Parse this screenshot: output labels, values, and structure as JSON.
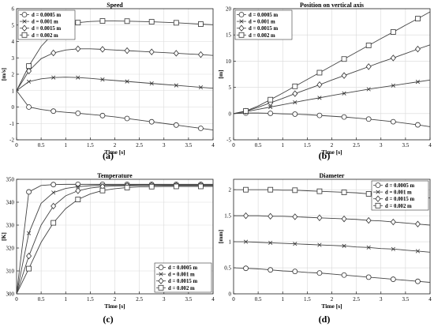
{
  "figure": {
    "captions": [
      "(a)",
      "(b)",
      "(c)",
      "(d)"
    ]
  },
  "chart_data": [
    {
      "id": "a",
      "type": "line",
      "title": "Speed",
      "xlabel": "Time [s]",
      "ylabel": "[m/s]",
      "xlim": [
        0,
        4
      ],
      "ylim": [
        -2,
        6
      ],
      "xticks": [
        0,
        0.5,
        1,
        1.5,
        2,
        2.5,
        3,
        3.5,
        4
      ],
      "yticks": [
        -2,
        -1,
        0,
        1,
        2,
        3,
        4,
        5,
        6
      ],
      "xtick_labels": [
        "0",
        "0.5",
        "1",
        "1.5",
        "2",
        "2.5",
        "3",
        "3.5",
        "4"
      ],
      "ytick_labels": [
        "-2",
        "-1",
        "0",
        "1",
        "2",
        "3",
        "4",
        "5",
        "6"
      ],
      "grid": true,
      "legend_position": "top-left",
      "x": [
        0,
        0.25,
        0.5,
        0.75,
        1,
        1.25,
        1.5,
        1.75,
        2,
        2.25,
        2.5,
        2.75,
        3,
        3.25,
        3.5,
        3.75,
        4
      ],
      "series": [
        {
          "name": "d = 0.0005 m",
          "marker": "circle",
          "values": [
            1,
            0,
            -0.15,
            -0.25,
            -0.32,
            -0.38,
            -0.45,
            -0.52,
            -0.6,
            -0.7,
            -0.8,
            -0.9,
            -1.0,
            -1.1,
            -1.2,
            -1.3,
            -1.4
          ]
        },
        {
          "name": "d = 0.001 m",
          "marker": "x",
          "values": [
            1,
            1.55,
            1.72,
            1.8,
            1.82,
            1.8,
            1.75,
            1.68,
            1.62,
            1.56,
            1.5,
            1.44,
            1.38,
            1.32,
            1.26,
            1.2,
            1.15
          ]
        },
        {
          "name": "d = 0.0015 m",
          "marker": "diamond",
          "values": [
            1,
            2.2,
            2.95,
            3.3,
            3.48,
            3.55,
            3.55,
            3.52,
            3.48,
            3.44,
            3.4,
            3.36,
            3.32,
            3.28,
            3.24,
            3.2,
            3.15
          ]
        },
        {
          "name": "d = 0.002 m",
          "marker": "square",
          "values": [
            1,
            2.5,
            3.7,
            4.5,
            4.95,
            5.15,
            5.22,
            5.25,
            5.25,
            5.24,
            5.22,
            5.2,
            5.17,
            5.14,
            5.1,
            5.06,
            5.02
          ]
        }
      ]
    },
    {
      "id": "b",
      "type": "line",
      "title": "Position on vertical axis",
      "xlabel": "Time [s]",
      "ylabel": "[m]",
      "xlim": [
        0,
        4
      ],
      "ylim": [
        -5,
        20
      ],
      "xticks": [
        0,
        0.5,
        1,
        1.5,
        2,
        2.5,
        3,
        3.5,
        4
      ],
      "yticks": [
        -5,
        0,
        5,
        10,
        15,
        20
      ],
      "xtick_labels": [
        "0",
        "0.5",
        "1",
        "1.5",
        "2",
        "2.5",
        "3",
        "3.5",
        "4"
      ],
      "ytick_labels": [
        "-5",
        "0",
        "5",
        "10",
        "15",
        "20"
      ],
      "grid": true,
      "legend_position": "top-left",
      "x": [
        0,
        0.25,
        0.5,
        0.75,
        1,
        1.25,
        1.5,
        1.75,
        2,
        2.25,
        2.5,
        2.75,
        3,
        3.25,
        3.5,
        3.75,
        4
      ],
      "series": [
        {
          "name": "d = 0.0005 m",
          "marker": "circle",
          "values": [
            0,
            0.1,
            0.1,
            0.05,
            -0.05,
            -0.1,
            -0.2,
            -0.35,
            -0.5,
            -0.65,
            -0.85,
            -1.05,
            -1.3,
            -1.55,
            -1.85,
            -2.15,
            -2.5
          ]
        },
        {
          "name": "d = 0.001 m",
          "marker": "x",
          "values": [
            0,
            0.35,
            0.8,
            1.25,
            1.7,
            2.15,
            2.6,
            3.0,
            3.45,
            3.85,
            4.25,
            4.65,
            5.0,
            5.35,
            5.7,
            6.05,
            6.4
          ]
        },
        {
          "name": "d = 0.0015 m",
          "marker": "diamond",
          "values": [
            0,
            0.45,
            1.2,
            2.05,
            2.9,
            3.8,
            4.65,
            5.5,
            6.4,
            7.25,
            8.1,
            8.95,
            9.8,
            10.6,
            11.45,
            12.3,
            13.1
          ]
        },
        {
          "name": "d = 0.002 m",
          "marker": "square",
          "values": [
            0,
            0.5,
            1.45,
            2.65,
            3.9,
            5.2,
            6.5,
            7.8,
            9.1,
            10.4,
            11.7,
            13.0,
            14.3,
            15.55,
            16.85,
            18.1,
            19.4
          ]
        }
      ]
    },
    {
      "id": "c",
      "type": "line",
      "title": "Temperature",
      "xlabel": "Time [s]",
      "ylabel": "[K]",
      "xlim": [
        0,
        4
      ],
      "ylim": [
        300,
        350
      ],
      "xticks": [
        0,
        0.5,
        1,
        1.5,
        2,
        2.5,
        3,
        3.5,
        4
      ],
      "yticks": [
        300,
        310,
        320,
        330,
        340,
        350
      ],
      "xtick_labels": [
        "0",
        "0.5",
        "1",
        "1.5",
        "2",
        "2.5",
        "3",
        "3.5",
        "4"
      ],
      "ytick_labels": [
        "300",
        "310",
        "320",
        "330",
        "340",
        "350"
      ],
      "grid": true,
      "legend_position": "bottom-right",
      "x": [
        0,
        0.25,
        0.5,
        0.75,
        1,
        1.25,
        1.5,
        1.75,
        2,
        2.25,
        2.5,
        2.75,
        3,
        3.25,
        3.5,
        3.75,
        4
      ],
      "series": [
        {
          "name": "d = 0.0005 m",
          "marker": "circle",
          "values": [
            300,
            344.5,
            347.3,
            347.7,
            347.8,
            347.8,
            347.8,
            347.8,
            347.8,
            347.8,
            347.8,
            347.8,
            347.8,
            347.8,
            347.8,
            347.8,
            347.8
          ]
        },
        {
          "name": "d = 0.001 m",
          "marker": "x",
          "values": [
            300,
            326.5,
            339.5,
            344.2,
            346.0,
            346.8,
            347.2,
            347.4,
            347.5,
            347.5,
            347.5,
            347.5,
            347.5,
            347.5,
            347.5,
            347.5,
            347.5
          ]
        },
        {
          "name": "d = 0.0015 m",
          "marker": "diamond",
          "values": [
            300,
            316.5,
            330.0,
            338.3,
            342.8,
            345.0,
            346.2,
            346.8,
            347.1,
            347.2,
            347.3,
            347.3,
            347.3,
            347.3,
            347.3,
            347.3,
            347.3
          ]
        },
        {
          "name": "d = 0.002 m",
          "marker": "square",
          "values": [
            300,
            311.0,
            322.5,
            331.0,
            337.2,
            341.2,
            343.6,
            345.1,
            345.9,
            346.4,
            346.7,
            346.8,
            346.9,
            346.9,
            346.9,
            346.9,
            346.9
          ]
        }
      ]
    },
    {
      "id": "d",
      "type": "line",
      "title": "Diameter",
      "xlabel": "Time [s]",
      "ylabel": "[mm]",
      "xlim": [
        0,
        4
      ],
      "ylim": [
        0,
        2.2
      ],
      "xticks": [
        0,
        0.5,
        1,
        1.5,
        2,
        2.5,
        3,
        3.5,
        4
      ],
      "yticks": [
        0,
        0.5,
        1,
        1.5,
        2
      ],
      "xtick_labels": [
        "0",
        "0.5",
        "1",
        "1.5",
        "2",
        "2.5",
        "3",
        "3.5",
        "4"
      ],
      "ytick_labels": [
        "0",
        "0.5",
        "1",
        "1.5",
        "2"
      ],
      "grid": true,
      "legend_position": "top-right",
      "x": [
        0,
        0.25,
        0.5,
        0.75,
        1,
        1.25,
        1.5,
        1.75,
        2,
        2.25,
        2.5,
        2.75,
        3,
        3.25,
        3.5,
        3.75,
        4
      ],
      "series": [
        {
          "name": "d = 0.0005 m",
          "marker": "circle",
          "values": [
            0.5,
            0.49,
            0.48,
            0.46,
            0.44,
            0.43,
            0.41,
            0.4,
            0.38,
            0.36,
            0.34,
            0.32,
            0.3,
            0.28,
            0.26,
            0.24,
            0.22
          ]
        },
        {
          "name": "d = 0.001 m",
          "marker": "x",
          "values": [
            1.0,
            1.0,
            0.99,
            0.98,
            0.97,
            0.96,
            0.95,
            0.94,
            0.93,
            0.92,
            0.9,
            0.89,
            0.87,
            0.86,
            0.84,
            0.82,
            0.8
          ]
        },
        {
          "name": "d = 0.0015 m",
          "marker": "diamond",
          "values": [
            1.5,
            1.5,
            1.5,
            1.49,
            1.49,
            1.48,
            1.47,
            1.46,
            1.45,
            1.44,
            1.43,
            1.41,
            1.4,
            1.38,
            1.36,
            1.34,
            1.32
          ]
        },
        {
          "name": "d = 0.002 m",
          "marker": "square",
          "values": [
            2.0,
            2.0,
            2.0,
            2.0,
            1.99,
            1.99,
            1.98,
            1.97,
            1.96,
            1.95,
            1.94,
            1.92,
            1.91,
            1.89,
            1.88,
            1.86,
            1.84
          ]
        }
      ]
    }
  ]
}
